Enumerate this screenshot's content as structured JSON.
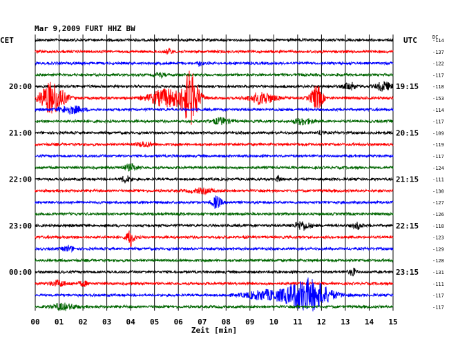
{
  "chart_data": {
    "type": "line",
    "title": "Mar 9,2009   FURT HHZ BW",
    "left_axis_label": "CET",
    "right_axis_label": "UTC",
    "dc_header": "DC",
    "xlabel": "Zeit [min]",
    "xlim": [
      0,
      15
    ],
    "x_ticks": [
      "00",
      "01",
      "02",
      "03",
      "04",
      "05",
      "06",
      "07",
      "08",
      "09",
      "10",
      "11",
      "12",
      "13",
      "14",
      "15"
    ],
    "colors": [
      "#000000",
      "#ff0000",
      "#0000ff",
      "#006600"
    ],
    "left_time_labels": [
      {
        "row": 4,
        "text": "20:00"
      },
      {
        "row": 8,
        "text": "21:00"
      },
      {
        "row": 12,
        "text": "22:00"
      },
      {
        "row": 16,
        "text": "23:00"
      },
      {
        "row": 20,
        "text": "00:00"
      }
    ],
    "right_time_labels": [
      {
        "row": 4,
        "text": "19:15"
      },
      {
        "row": 8,
        "text": "20:15"
      },
      {
        "row": 12,
        "text": "21:15"
      },
      {
        "row": 16,
        "text": "22:15"
      },
      {
        "row": 20,
        "text": "23:15"
      }
    ],
    "dc_offsets": [
      "-114",
      "-137",
      "-122",
      "-117",
      "-118",
      "-153",
      "-114",
      "-117",
      "-109",
      "-119",
      "-117",
      "-124",
      "-111",
      "-130",
      "-127",
      "-126",
      "-118",
      "-123",
      "-129",
      "-128",
      "-131",
      "-111",
      "-117",
      "-117"
    ],
    "events": [
      {
        "row": 1,
        "minute": 5.6,
        "amp": 0.35,
        "width": 0.15
      },
      {
        "row": 2,
        "minute": 6.9,
        "amp": 0.3,
        "width": 0.1
      },
      {
        "row": 3,
        "minute": 5.2,
        "amp": 0.3,
        "width": 0.2
      },
      {
        "row": 4,
        "minute": 13.2,
        "amp": 0.5,
        "width": 0.25
      },
      {
        "row": 4,
        "minute": 14.6,
        "amp": 0.6,
        "width": 0.3
      },
      {
        "row": 5,
        "minute": 0.7,
        "amp": 2.2,
        "width": 0.5
      },
      {
        "row": 5,
        "minute": 6.5,
        "amp": 3.4,
        "width": 0.35
      },
      {
        "row": 5,
        "minute": 5.5,
        "amp": 1.2,
        "width": 0.7
      },
      {
        "row": 5,
        "minute": 9.5,
        "amp": 0.8,
        "width": 0.5
      },
      {
        "row": 5,
        "minute": 11.8,
        "amp": 1.6,
        "width": 0.25
      },
      {
        "row": 6,
        "minute": 1.5,
        "amp": 0.5,
        "width": 0.5
      },
      {
        "row": 7,
        "minute": 7.8,
        "amp": 0.4,
        "width": 0.4
      },
      {
        "row": 7,
        "minute": 11.2,
        "amp": 0.4,
        "width": 0.4
      },
      {
        "row": 8,
        "minute": 12.0,
        "amp": 0.35,
        "width": 0.1
      },
      {
        "row": 9,
        "minute": 4.6,
        "amp": 0.35,
        "width": 0.3
      },
      {
        "row": 11,
        "minute": 4.0,
        "amp": 0.4,
        "width": 0.3
      },
      {
        "row": 12,
        "minute": 3.8,
        "amp": 0.45,
        "width": 0.2
      },
      {
        "row": 12,
        "minute": 10.2,
        "amp": 0.4,
        "width": 0.1
      },
      {
        "row": 13,
        "minute": 7.0,
        "amp": 0.3,
        "width": 0.5
      },
      {
        "row": 14,
        "minute": 7.6,
        "amp": 0.8,
        "width": 0.2
      },
      {
        "row": 16,
        "minute": 11.2,
        "amp": 0.6,
        "width": 0.3
      },
      {
        "row": 16,
        "minute": 13.5,
        "amp": 0.4,
        "width": 0.2
      },
      {
        "row": 17,
        "minute": 4.0,
        "amp": 1.2,
        "width": 0.15
      },
      {
        "row": 18,
        "minute": 1.4,
        "amp": 0.4,
        "width": 0.2
      },
      {
        "row": 20,
        "minute": 13.3,
        "amp": 0.5,
        "width": 0.15
      },
      {
        "row": 21,
        "minute": 1.0,
        "amp": 0.4,
        "width": 0.3
      },
      {
        "row": 21,
        "minute": 2.0,
        "amp": 0.3,
        "width": 0.2
      },
      {
        "row": 22,
        "minute": 11.4,
        "amp": 2.2,
        "width": 0.9
      },
      {
        "row": 22,
        "minute": 9.6,
        "amp": 0.6,
        "width": 0.8
      },
      {
        "row": 23,
        "minute": 1.2,
        "amp": 0.4,
        "width": 0.5
      }
    ]
  }
}
